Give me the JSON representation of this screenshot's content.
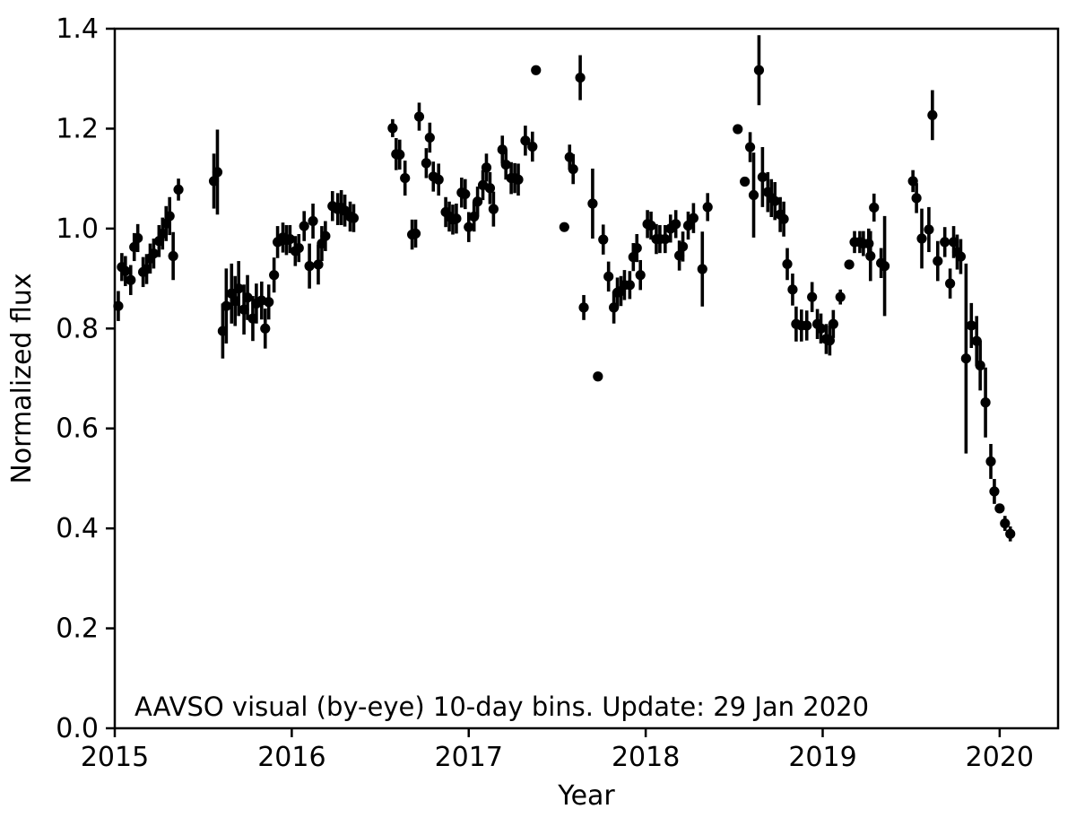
{
  "chart_data": {
    "type": "scatter",
    "title": "",
    "xlabel": "Year",
    "ylabel": "Normalized flux",
    "annotation": "AAVSO visual (by-eye) 10-day bins. Update: 29 Jan 2020",
    "xlim": [
      2015.0,
      2020.33
    ],
    "ylim": [
      0.0,
      1.4
    ],
    "x_tick_values": [
      2015,
      2016,
      2017,
      2018,
      2019,
      2020
    ],
    "x_tick_labels": [
      "2015",
      "2016",
      "2017",
      "2018",
      "2019",
      "2020"
    ],
    "y_tick_values": [
      0.0,
      0.2,
      0.4,
      0.6,
      0.8,
      1.0,
      1.2,
      1.4
    ],
    "y_tick_labels": [
      "0.0",
      "0.2",
      "0.4",
      "0.6",
      "0.8",
      "1.0",
      "1.2",
      "1.4"
    ],
    "grid": false,
    "legend_position": "none",
    "marker": "filled-circle",
    "marker_color": "#000000",
    "errorbar_color": "#000000",
    "background_color": "#ffffff",
    "series": [
      {
        "name": "AAVSO visual 10-day bins",
        "points_format": [
          "year",
          "normalized_flux",
          "flux_error"
        ],
        "points": [
          [
            2015.02,
            0.845,
            0.03
          ],
          [
            2015.04,
            0.923,
            0.028
          ],
          [
            2015.06,
            0.915,
            0.03
          ],
          [
            2015.09,
            0.897,
            0.03
          ],
          [
            2015.11,
            0.963,
            0.028
          ],
          [
            2015.13,
            0.981,
            0.028
          ],
          [
            2015.16,
            0.913,
            0.03
          ],
          [
            2015.18,
            0.919,
            0.03
          ],
          [
            2015.2,
            0.94,
            0.03
          ],
          [
            2015.22,
            0.95,
            0.03
          ],
          [
            2015.25,
            0.975,
            0.032
          ],
          [
            2015.27,
            0.99,
            0.032
          ],
          [
            2015.29,
            1.01,
            0.035
          ],
          [
            2015.31,
            1.025,
            0.038
          ],
          [
            2015.33,
            0.945,
            0.048
          ],
          [
            2015.36,
            1.078,
            0.022
          ],
          [
            2015.56,
            1.095,
            0.055
          ],
          [
            2015.58,
            1.113,
            0.085
          ],
          [
            2015.61,
            0.795,
            0.055
          ],
          [
            2015.63,
            0.845,
            0.075
          ],
          [
            2015.66,
            0.87,
            0.06
          ],
          [
            2015.68,
            0.855,
            0.05
          ],
          [
            2015.7,
            0.88,
            0.055
          ],
          [
            2015.73,
            0.838,
            0.05
          ],
          [
            2015.75,
            0.862,
            0.045
          ],
          [
            2015.78,
            0.82,
            0.045
          ],
          [
            2015.8,
            0.85,
            0.04
          ],
          [
            2015.83,
            0.856,
            0.038
          ],
          [
            2015.85,
            0.8,
            0.04
          ],
          [
            2015.87,
            0.853,
            0.035
          ],
          [
            2015.9,
            0.907,
            0.035
          ],
          [
            2015.92,
            0.973,
            0.032
          ],
          [
            2015.95,
            0.982,
            0.03
          ],
          [
            2015.97,
            0.977,
            0.03
          ],
          [
            2015.99,
            0.979,
            0.028
          ],
          [
            2016.02,
            0.955,
            0.03
          ],
          [
            2016.04,
            0.961,
            0.028
          ],
          [
            2016.07,
            1.005,
            0.03
          ],
          [
            2016.1,
            0.925,
            0.045
          ],
          [
            2016.12,
            1.015,
            0.035
          ],
          [
            2016.15,
            0.928,
            0.04
          ],
          [
            2016.17,
            0.97,
            0.035
          ],
          [
            2016.19,
            0.985,
            0.03
          ],
          [
            2016.23,
            1.045,
            0.03
          ],
          [
            2016.26,
            1.039,
            0.032
          ],
          [
            2016.28,
            1.042,
            0.035
          ],
          [
            2016.3,
            1.036,
            0.032
          ],
          [
            2016.33,
            1.024,
            0.03
          ],
          [
            2016.35,
            1.021,
            0.028
          ],
          [
            2016.57,
            1.201,
            0.018
          ],
          [
            2016.59,
            1.149,
            0.032
          ],
          [
            2016.61,
            1.148,
            0.03
          ],
          [
            2016.64,
            1.101,
            0.035
          ],
          [
            2016.68,
            0.988,
            0.03
          ],
          [
            2016.7,
            0.99,
            0.028
          ],
          [
            2016.72,
            1.224,
            0.028
          ],
          [
            2016.76,
            1.131,
            0.03
          ],
          [
            2016.78,
            1.182,
            0.03
          ],
          [
            2016.8,
            1.104,
            0.03
          ],
          [
            2016.83,
            1.098,
            0.032
          ],
          [
            2016.87,
            1.033,
            0.03
          ],
          [
            2016.89,
            1.024,
            0.03
          ],
          [
            2016.91,
            1.018,
            0.03
          ],
          [
            2016.93,
            1.02,
            0.03
          ],
          [
            2016.96,
            1.072,
            0.03
          ],
          [
            2016.98,
            1.069,
            0.03
          ],
          [
            2017.0,
            1.003,
            0.03
          ],
          [
            2017.03,
            1.024,
            0.03
          ],
          [
            2017.05,
            1.054,
            0.03
          ],
          [
            2017.08,
            1.087,
            0.03
          ],
          [
            2017.1,
            1.122,
            0.028
          ],
          [
            2017.12,
            1.081,
            0.032
          ],
          [
            2017.14,
            1.039,
            0.035
          ],
          [
            2017.19,
            1.158,
            0.028
          ],
          [
            2017.21,
            1.128,
            0.03
          ],
          [
            2017.24,
            1.101,
            0.032
          ],
          [
            2017.26,
            1.101,
            0.03
          ],
          [
            2017.28,
            1.098,
            0.032
          ],
          [
            2017.32,
            1.176,
            0.03
          ],
          [
            2017.36,
            1.164,
            0.03
          ],
          [
            2017.38,
            1.317,
            0.01
          ],
          [
            2017.54,
            1.003,
            0.01
          ],
          [
            2017.57,
            1.143,
            0.025
          ],
          [
            2017.59,
            1.119,
            0.03
          ],
          [
            2017.63,
            1.302,
            0.045
          ],
          [
            2017.65,
            0.842,
            0.025
          ],
          [
            2017.7,
            1.05,
            0.07
          ],
          [
            2017.73,
            0.704,
            0.01
          ],
          [
            2017.76,
            0.978,
            0.03
          ],
          [
            2017.79,
            0.904,
            0.03
          ],
          [
            2017.82,
            0.842,
            0.032
          ],
          [
            2017.84,
            0.872,
            0.03
          ],
          [
            2017.86,
            0.875,
            0.03
          ],
          [
            2017.88,
            0.887,
            0.03
          ],
          [
            2017.91,
            0.887,
            0.028
          ],
          [
            2017.93,
            0.943,
            0.028
          ],
          [
            2017.95,
            0.961,
            0.028
          ],
          [
            2017.97,
            0.907,
            0.03
          ],
          [
            2018.01,
            1.009,
            0.028
          ],
          [
            2018.03,
            1.006,
            0.028
          ],
          [
            2018.06,
            0.979,
            0.03
          ],
          [
            2018.08,
            0.979,
            0.028
          ],
          [
            2018.11,
            0.979,
            0.028
          ],
          [
            2018.14,
            1.0,
            0.028
          ],
          [
            2018.17,
            1.009,
            0.028
          ],
          [
            2018.19,
            0.946,
            0.03
          ],
          [
            2018.21,
            0.964,
            0.03
          ],
          [
            2018.24,
            1.006,
            0.028
          ],
          [
            2018.27,
            1.021,
            0.03
          ],
          [
            2018.32,
            0.919,
            0.075
          ],
          [
            2018.35,
            1.043,
            0.028
          ],
          [
            2018.52,
            1.199,
            0.01
          ],
          [
            2018.56,
            1.094,
            0.01
          ],
          [
            2018.59,
            1.163,
            0.03
          ],
          [
            2018.61,
            1.067,
            0.085
          ],
          [
            2018.64,
            1.317,
            0.07
          ],
          [
            2018.66,
            1.103,
            0.06
          ],
          [
            2018.69,
            1.073,
            0.04
          ],
          [
            2018.71,
            1.061,
            0.038
          ],
          [
            2018.73,
            1.055,
            0.038
          ],
          [
            2018.76,
            1.028,
            0.035
          ],
          [
            2018.78,
            1.019,
            0.035
          ],
          [
            2018.8,
            0.929,
            0.032
          ],
          [
            2018.83,
            0.878,
            0.032
          ],
          [
            2018.85,
            0.809,
            0.035
          ],
          [
            2018.88,
            0.806,
            0.032
          ],
          [
            2018.91,
            0.806,
            0.03
          ],
          [
            2018.94,
            0.863,
            0.03
          ],
          [
            2018.97,
            0.809,
            0.03
          ],
          [
            2018.99,
            0.8,
            0.03
          ],
          [
            2019.02,
            0.779,
            0.03
          ],
          [
            2019.04,
            0.776,
            0.03
          ],
          [
            2019.06,
            0.809,
            0.028
          ],
          [
            2019.1,
            0.863,
            0.015
          ],
          [
            2019.15,
            0.928,
            0.012
          ],
          [
            2019.18,
            0.973,
            0.022
          ],
          [
            2019.21,
            0.973,
            0.022
          ],
          [
            2019.23,
            0.97,
            0.025
          ],
          [
            2019.26,
            0.97,
            0.03
          ],
          [
            2019.27,
            0.945,
            0.05
          ],
          [
            2019.29,
            1.042,
            0.028
          ],
          [
            2019.33,
            0.931,
            0.03
          ],
          [
            2019.35,
            0.925,
            0.1
          ],
          [
            2019.51,
            1.095,
            0.022
          ],
          [
            2019.53,
            1.061,
            0.03
          ],
          [
            2019.56,
            0.98,
            0.06
          ],
          [
            2019.6,
            0.998,
            0.045
          ],
          [
            2019.62,
            1.227,
            0.05
          ],
          [
            2019.65,
            0.935,
            0.04
          ],
          [
            2019.69,
            0.973,
            0.03
          ],
          [
            2019.72,
            0.89,
            0.03
          ],
          [
            2019.74,
            0.973,
            0.032
          ],
          [
            2019.76,
            0.953,
            0.035
          ],
          [
            2019.78,
            0.944,
            0.035
          ],
          [
            2019.81,
            0.74,
            0.19
          ],
          [
            2019.84,
            0.806,
            0.045
          ],
          [
            2019.87,
            0.775,
            0.05
          ],
          [
            2019.89,
            0.726,
            0.05
          ],
          [
            2019.92,
            0.652,
            0.07
          ],
          [
            2019.95,
            0.534,
            0.035
          ],
          [
            2019.97,
            0.474,
            0.025
          ],
          [
            2020.0,
            0.44,
            0.01
          ],
          [
            2020.03,
            0.41,
            0.015
          ],
          [
            2020.06,
            0.389,
            0.015
          ]
        ]
      }
    ]
  }
}
